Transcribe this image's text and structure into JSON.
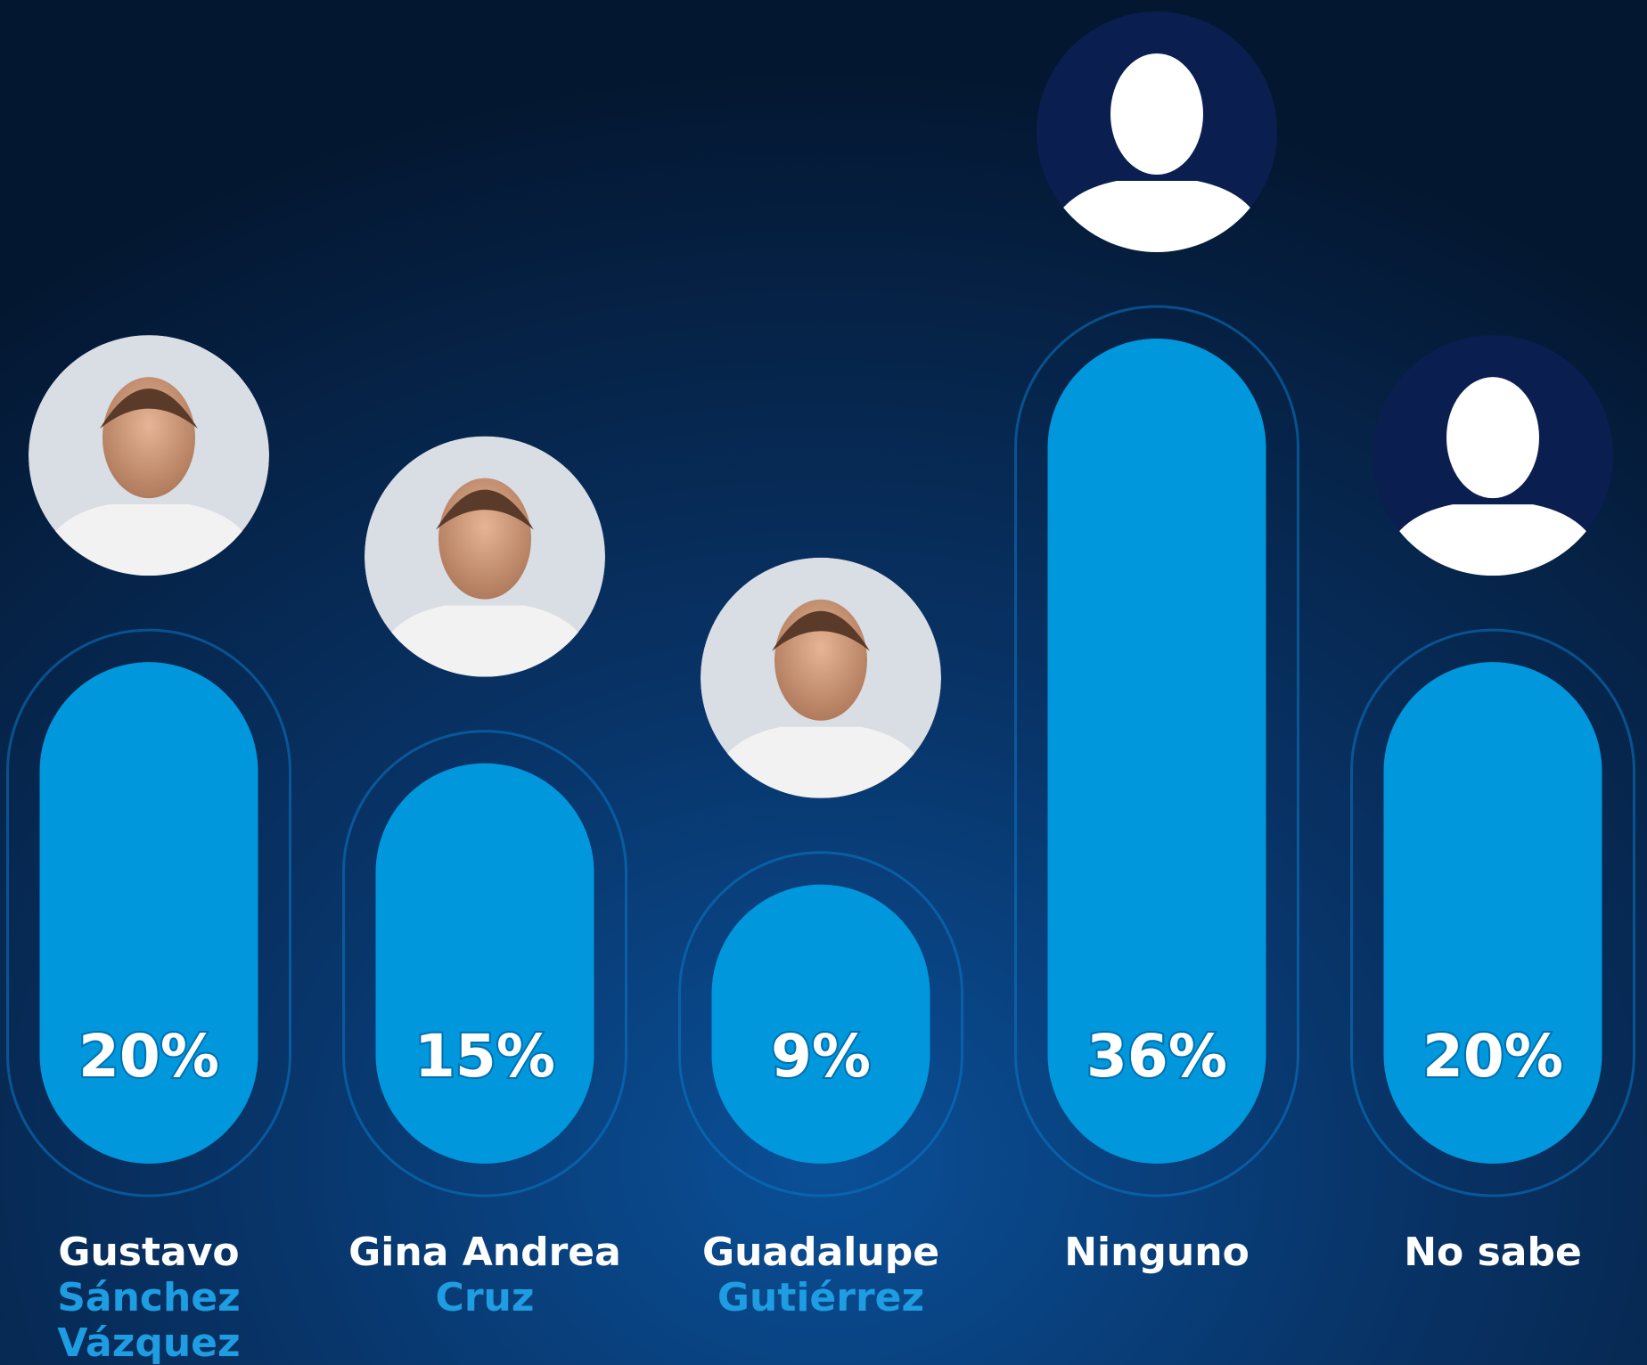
{
  "chart_data": {
    "type": "bar",
    "categories": [
      [
        "Gustavo",
        "Sánchez",
        "Vázquez"
      ],
      [
        "Gina Andrea",
        "Cruz"
      ],
      [
        "Guadalupe",
        "Gutiérrez"
      ],
      [
        "Ninguno"
      ],
      [
        "No sabe"
      ]
    ],
    "values": [
      20,
      15,
      9,
      36,
      20
    ],
    "value_labels": [
      "20%",
      "15%",
      "9%",
      "36%",
      "20%"
    ],
    "color": "#0097dc",
    "ylim": [
      -4.8,
      36
    ]
  }
}
